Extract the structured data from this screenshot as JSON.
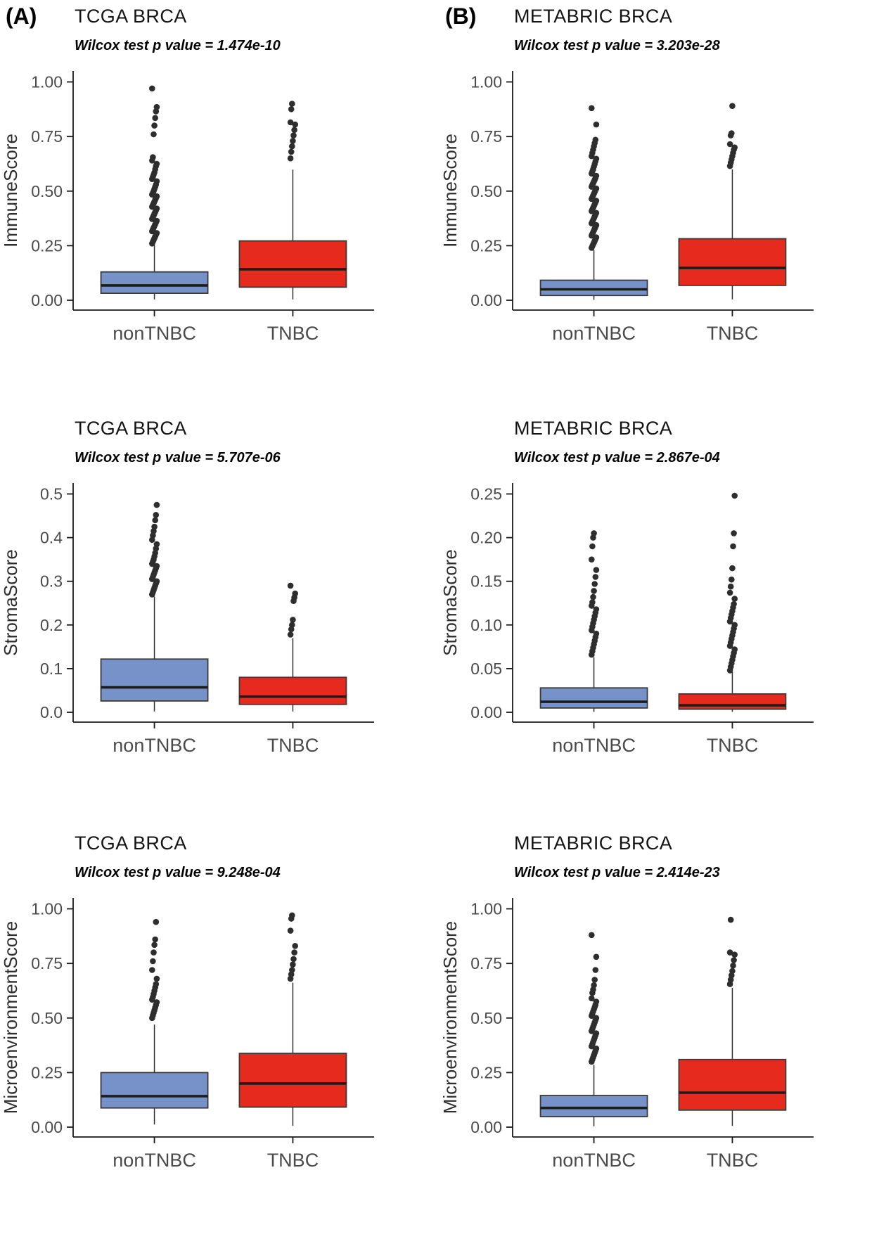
{
  "figure": {
    "background": "#ffffff",
    "colors": {
      "nonTNBC": "#7792C9",
      "TNBC": "#E62B1E",
      "box_border": "#3a3a3a",
      "median": "#1c1c1c",
      "outlier": "#2e2e2e",
      "axis": "#1a1a1a",
      "tick_label": "#4a4a4a"
    }
  },
  "chart_data": [
    {
      "type": "boxplot",
      "panel_label": "(A)",
      "title": "TCGA BRCA",
      "subtitle": "Wilcox test p value = 1.474e-10",
      "ylabel": "ImmuneScore",
      "ylim": [
        0,
        1.0
      ],
      "yticks": [
        0,
        0.25,
        0.5,
        0.75,
        1.0
      ],
      "ytick_labels": [
        "0.00",
        "0.25",
        "0.50",
        "0.75",
        "1.00"
      ],
      "categories": [
        "nonTNBC",
        "TNBC"
      ],
      "series": [
        {
          "group": "nonTNBC",
          "whisker_low": 0.004,
          "q1": 0.032,
          "median": 0.068,
          "q3": 0.13,
          "whisker_high": 0.252,
          "outliers": [
            0.26,
            0.268,
            0.276,
            0.284,
            0.292,
            0.3,
            0.308,
            0.316,
            0.324,
            0.332,
            0.34,
            0.348,
            0.356,
            0.364,
            0.372,
            0.38,
            0.388,
            0.396,
            0.404,
            0.412,
            0.42,
            0.428,
            0.436,
            0.444,
            0.452,
            0.46,
            0.468,
            0.476,
            0.484,
            0.492,
            0.5,
            0.51,
            0.52,
            0.53,
            0.545,
            0.555,
            0.565,
            0.575,
            0.585,
            0.6,
            0.615,
            0.625,
            0.64,
            0.655,
            0.76,
            0.8,
            0.835,
            0.865,
            0.885,
            0.97
          ]
        },
        {
          "group": "TNBC",
          "whisker_low": 0.004,
          "q1": 0.06,
          "median": 0.142,
          "q3": 0.272,
          "whisker_high": 0.598,
          "outliers": [
            0.65,
            0.68,
            0.705,
            0.73,
            0.755,
            0.78,
            0.805,
            0.815,
            0.875,
            0.9
          ]
        }
      ]
    },
    {
      "type": "boxplot",
      "panel_label": "(B)",
      "title": "METABRIC BRCA",
      "subtitle": "Wilcox test p value = 3.203e-28",
      "ylabel": "ImmuneScore",
      "ylim": [
        0,
        1.0
      ],
      "yticks": [
        0,
        0.25,
        0.5,
        0.75,
        1.0
      ],
      "ytick_labels": [
        "0.00",
        "0.25",
        "0.50",
        "0.75",
        "1.00"
      ],
      "categories": [
        "nonTNBC",
        "TNBC"
      ],
      "series": [
        {
          "group": "nonTNBC",
          "whisker_low": 0.002,
          "q1": 0.022,
          "median": 0.05,
          "q3": 0.092,
          "whisker_high": 0.23,
          "outliers": [
            0.24,
            0.248,
            0.256,
            0.264,
            0.272,
            0.28,
            0.288,
            0.296,
            0.304,
            0.312,
            0.32,
            0.328,
            0.336,
            0.344,
            0.352,
            0.36,
            0.368,
            0.376,
            0.384,
            0.392,
            0.4,
            0.408,
            0.416,
            0.424,
            0.432,
            0.44,
            0.448,
            0.456,
            0.464,
            0.472,
            0.48,
            0.488,
            0.496,
            0.504,
            0.512,
            0.52,
            0.528,
            0.536,
            0.544,
            0.552,
            0.56,
            0.57,
            0.58,
            0.59,
            0.6,
            0.612,
            0.624,
            0.636,
            0.648,
            0.66,
            0.675,
            0.69,
            0.705,
            0.72,
            0.735,
            0.805,
            0.88
          ]
        },
        {
          "group": "TNBC",
          "whisker_low": 0.004,
          "q1": 0.068,
          "median": 0.148,
          "q3": 0.282,
          "whisker_high": 0.6,
          "outliers": [
            0.615,
            0.63,
            0.645,
            0.66,
            0.675,
            0.69,
            0.7,
            0.715,
            0.755,
            0.765,
            0.89
          ]
        }
      ]
    },
    {
      "type": "boxplot",
      "title": "TCGA BRCA",
      "subtitle": "Wilcox test p value = 5.707e-06",
      "ylabel": "StromaScore",
      "ylim": [
        0,
        0.5
      ],
      "yticks": [
        0,
        0.1,
        0.2,
        0.3,
        0.4,
        0.5
      ],
      "ytick_labels": [
        "0.0",
        "0.1",
        "0.2",
        "0.3",
        "0.4",
        "0.5"
      ],
      "categories": [
        "nonTNBC",
        "TNBC"
      ],
      "series": [
        {
          "group": "nonTNBC",
          "whisker_low": 0.002,
          "q1": 0.026,
          "median": 0.057,
          "q3": 0.122,
          "whisker_high": 0.265,
          "outliers": [
            0.27,
            0.275,
            0.28,
            0.285,
            0.29,
            0.295,
            0.3,
            0.305,
            0.31,
            0.315,
            0.32,
            0.325,
            0.33,
            0.335,
            0.34,
            0.345,
            0.35,
            0.357,
            0.365,
            0.375,
            0.385,
            0.395,
            0.405,
            0.415,
            0.425,
            0.44,
            0.452,
            0.475
          ]
        },
        {
          "group": "TNBC",
          "whisker_low": 0.002,
          "q1": 0.018,
          "median": 0.036,
          "q3": 0.08,
          "whisker_high": 0.17,
          "outliers": [
            0.178,
            0.19,
            0.2,
            0.212,
            0.255,
            0.263,
            0.272,
            0.29
          ]
        }
      ]
    },
    {
      "type": "boxplot",
      "title": "METABRIC BRCA",
      "subtitle": "Wilcox test p value = 2.867e-04",
      "ylabel": "StromaScore",
      "ylim": [
        0,
        0.25
      ],
      "yticks": [
        0,
        0.05,
        0.1,
        0.15,
        0.2,
        0.25
      ],
      "ytick_labels": [
        "0.00",
        "0.05",
        "0.10",
        "0.15",
        "0.20",
        "0.25"
      ],
      "categories": [
        "nonTNBC",
        "TNBC"
      ],
      "series": [
        {
          "group": "nonTNBC",
          "whisker_low": 0.0005,
          "q1": 0.005,
          "median": 0.012,
          "q3": 0.028,
          "whisker_high": 0.063,
          "outliers": [
            0.066,
            0.07,
            0.074,
            0.078,
            0.082,
            0.086,
            0.09,
            0.094,
            0.098,
            0.102,
            0.106,
            0.11,
            0.114,
            0.118,
            0.122,
            0.126,
            0.132,
            0.139,
            0.147,
            0.155,
            0.163,
            0.175,
            0.19,
            0.2,
            0.205
          ]
        },
        {
          "group": "TNBC",
          "whisker_low": 0.0005,
          "q1": 0.0035,
          "median": 0.008,
          "q3": 0.021,
          "whisker_high": 0.046,
          "outliers": [
            0.048,
            0.052,
            0.056,
            0.06,
            0.064,
            0.068,
            0.072,
            0.076,
            0.08,
            0.084,
            0.088,
            0.092,
            0.096,
            0.1,
            0.104,
            0.108,
            0.112,
            0.116,
            0.12,
            0.124,
            0.13,
            0.137,
            0.144,
            0.152,
            0.165,
            0.19,
            0.205,
            0.248
          ]
        }
      ]
    },
    {
      "type": "boxplot",
      "title": "TCGA BRCA",
      "subtitle": "Wilcox test p value = 9.248e-04",
      "ylabel": "MicroenvironmentScore",
      "ylim": [
        0,
        1.0
      ],
      "yticks": [
        0,
        0.25,
        0.5,
        0.75,
        1.0
      ],
      "ytick_labels": [
        "0.00",
        "0.25",
        "0.50",
        "0.75",
        "1.00"
      ],
      "categories": [
        "nonTNBC",
        "TNBC"
      ],
      "series": [
        {
          "group": "nonTNBC",
          "whisker_low": 0.012,
          "q1": 0.088,
          "median": 0.142,
          "q3": 0.25,
          "whisker_high": 0.47,
          "outliers": [
            0.5,
            0.512,
            0.524,
            0.536,
            0.548,
            0.56,
            0.572,
            0.584,
            0.596,
            0.61,
            0.625,
            0.64,
            0.655,
            0.68,
            0.72,
            0.76,
            0.8,
            0.835,
            0.86,
            0.94
          ]
        },
        {
          "group": "TNBC",
          "whisker_low": 0.006,
          "q1": 0.092,
          "median": 0.2,
          "q3": 0.338,
          "whisker_high": 0.662,
          "outliers": [
            0.68,
            0.7,
            0.72,
            0.745,
            0.77,
            0.8,
            0.83,
            0.9,
            0.955,
            0.97
          ]
        }
      ]
    },
    {
      "type": "boxplot",
      "title": "METABRIC BRCA",
      "subtitle": "Wilcox test p value = 2.414e-23",
      "ylabel": "MicroenvironmentScore",
      "ylim": [
        0,
        1.0
      ],
      "yticks": [
        0,
        0.25,
        0.5,
        0.75,
        1.0
      ],
      "ytick_labels": [
        "0.00",
        "0.25",
        "0.50",
        "0.75",
        "1.00"
      ],
      "categories": [
        "nonTNBC",
        "TNBC"
      ],
      "series": [
        {
          "group": "nonTNBC",
          "whisker_low": 0.004,
          "q1": 0.048,
          "median": 0.088,
          "q3": 0.145,
          "whisker_high": 0.285,
          "outliers": [
            0.3,
            0.31,
            0.32,
            0.33,
            0.34,
            0.35,
            0.36,
            0.37,
            0.38,
            0.39,
            0.4,
            0.41,
            0.42,
            0.43,
            0.44,
            0.45,
            0.46,
            0.47,
            0.48,
            0.49,
            0.5,
            0.51,
            0.52,
            0.53,
            0.54,
            0.55,
            0.56,
            0.575,
            0.59,
            0.615,
            0.63,
            0.65,
            0.675,
            0.72,
            0.78,
            0.88
          ]
        },
        {
          "group": "TNBC",
          "whisker_low": 0.006,
          "q1": 0.078,
          "median": 0.158,
          "q3": 0.31,
          "whisker_high": 0.638,
          "outliers": [
            0.655,
            0.675,
            0.695,
            0.715,
            0.74,
            0.765,
            0.79,
            0.8,
            0.95
          ]
        }
      ]
    }
  ]
}
